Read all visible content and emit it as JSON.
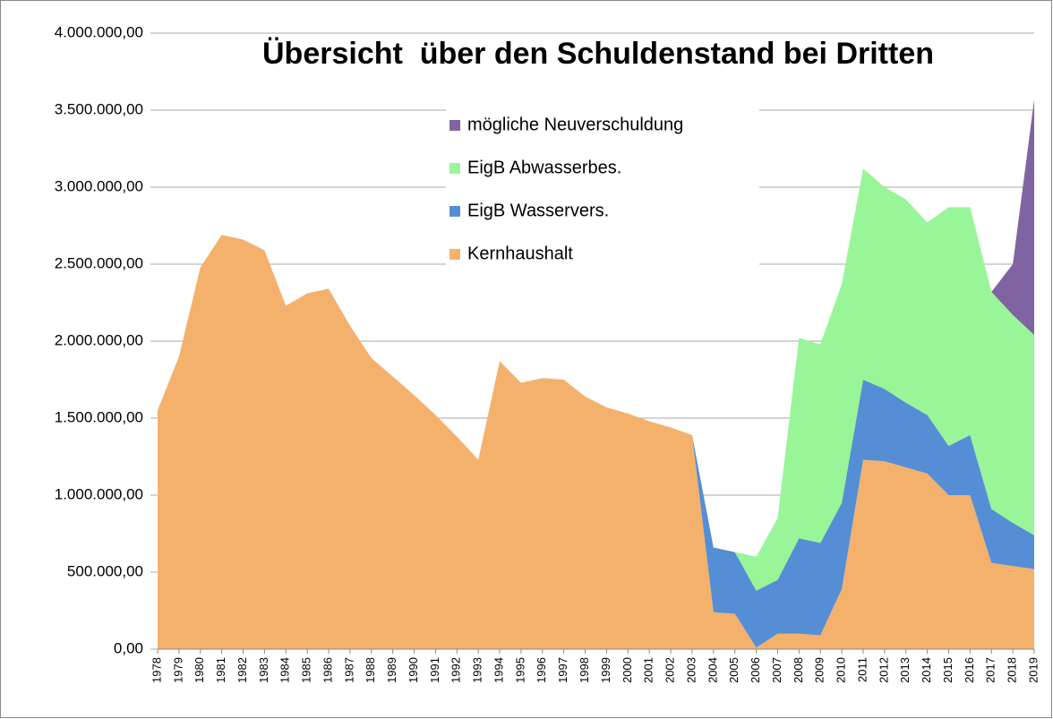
{
  "chart_data": {
    "type": "stacked_area",
    "title": "Übersicht  über den Schuldenstand bei Dritten",
    "categories": [
      "1978",
      "1979",
      "1980",
      "1981",
      "1982",
      "1983",
      "1984",
      "1985",
      "1986",
      "1987",
      "1988",
      "1989",
      "1990",
      "1991",
      "1992",
      "1993",
      "1994",
      "1995",
      "1996",
      "1997",
      "1998",
      "1999",
      "2000",
      "2001",
      "2002",
      "2003",
      "2004",
      "2005",
      "2006",
      "2007",
      "2008",
      "2009",
      "2010",
      "2011",
      "2012",
      "2013",
      "2014",
      "2015",
      "2016",
      "2017",
      "2018",
      "2019"
    ],
    "series": [
      {
        "name": "Kernhaushalt",
        "color": "#f4b16c",
        "values": [
          1550000,
          1900000,
          2480000,
          2690000,
          2660000,
          2590000,
          2230000,
          2310000,
          2340000,
          2100000,
          1890000,
          1770000,
          1650000,
          1520000,
          1380000,
          1230000,
          1870000,
          1730000,
          1760000,
          1750000,
          1640000,
          1570000,
          1530000,
          1480000,
          1440000,
          1390000,
          240000,
          230000,
          10000,
          100000,
          100000,
          90000,
          390000,
          1230000,
          1220000,
          1180000,
          1140000,
          1000000,
          1000000,
          560000,
          540000,
          520000
        ]
      },
      {
        "name": "EigB Wasservers.",
        "color": "#558ed5",
        "values": [
          0,
          0,
          0,
          0,
          0,
          0,
          0,
          0,
          0,
          0,
          0,
          0,
          0,
          0,
          0,
          0,
          0,
          0,
          0,
          0,
          0,
          0,
          0,
          0,
          0,
          0,
          420000,
          400000,
          370000,
          350000,
          620000,
          600000,
          560000,
          520000,
          470000,
          420000,
          380000,
          320000,
          390000,
          350000,
          280000,
          220000
        ]
      },
      {
        "name": "EigB Abwasserbes.",
        "color": "#98f598",
        "values": [
          0,
          0,
          0,
          0,
          0,
          0,
          0,
          0,
          0,
          0,
          0,
          0,
          0,
          0,
          0,
          0,
          0,
          0,
          0,
          0,
          0,
          0,
          0,
          0,
          0,
          0,
          0,
          0,
          220000,
          400000,
          1300000,
          1290000,
          1420000,
          1370000,
          1310000,
          1320000,
          1250000,
          1550000,
          1480000,
          1410000,
          1350000,
          1300000
        ]
      },
      {
        "name": "mögliche Neuverschuldung",
        "color": "#8064a2",
        "values": [
          0,
          0,
          0,
          0,
          0,
          0,
          0,
          0,
          0,
          0,
          0,
          0,
          0,
          0,
          0,
          0,
          0,
          0,
          0,
          0,
          0,
          0,
          0,
          0,
          0,
          0,
          0,
          0,
          0,
          0,
          0,
          0,
          0,
          0,
          0,
          0,
          0,
          0,
          0,
          0,
          330000,
          1530000
        ]
      }
    ],
    "ylim": [
      0,
      4000000
    ],
    "yticks": [
      {
        "value": 0,
        "label": "0,00"
      },
      {
        "value": 500000,
        "label": "500.000,00"
      },
      {
        "value": 1000000,
        "label": "1.000.000,00"
      },
      {
        "value": 1500000,
        "label": "1.500.000,00"
      },
      {
        "value": 2000000,
        "label": "2.000.000,00"
      },
      {
        "value": 2500000,
        "label": "2.500.000,00"
      },
      {
        "value": 3000000,
        "label": "3.000.000,00"
      },
      {
        "value": 3500000,
        "label": "3.500.000,00"
      },
      {
        "value": 4000000,
        "label": "4.000.000,00"
      }
    ],
    "grid": true
  }
}
